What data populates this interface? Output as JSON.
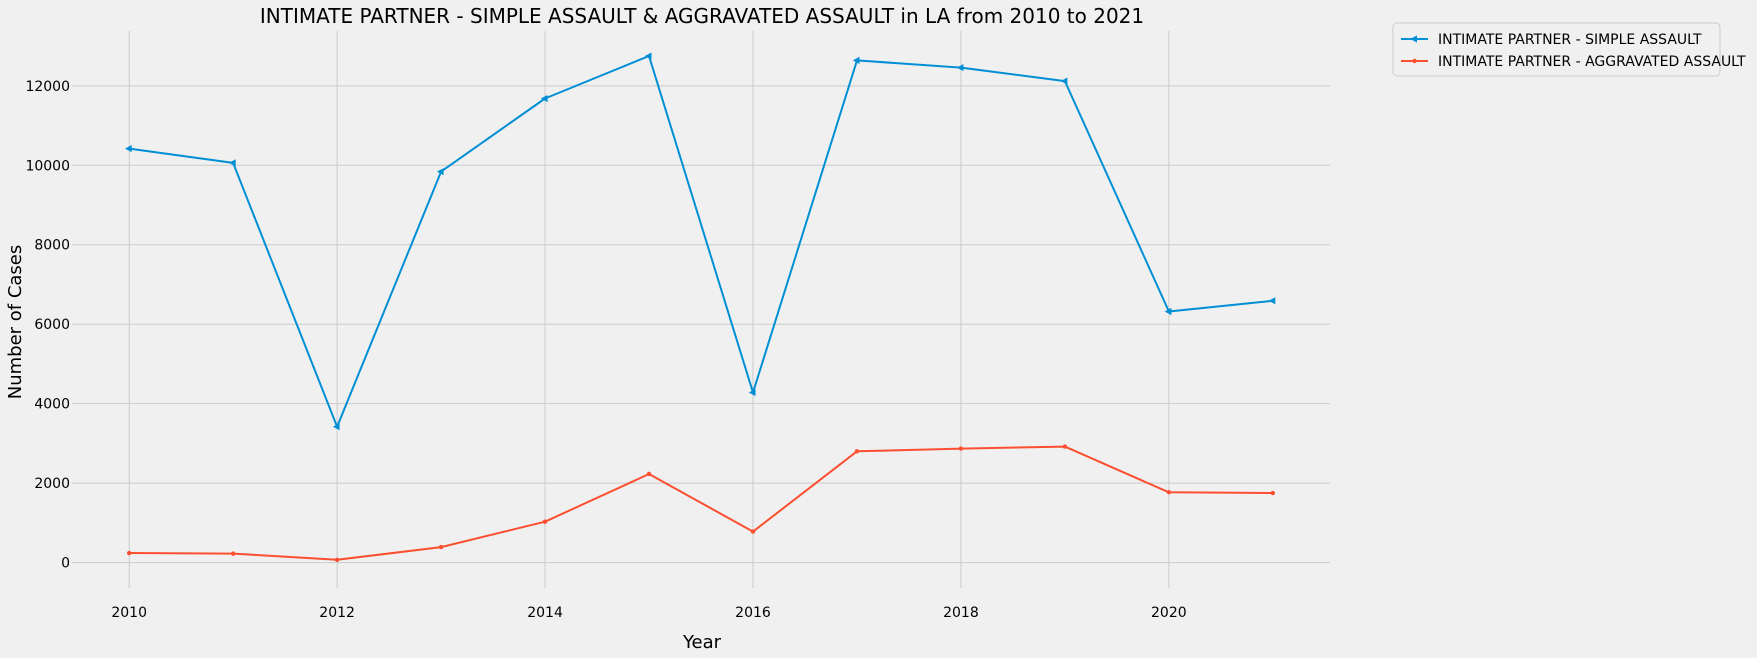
{
  "chart_data": {
    "type": "line",
    "title": "INTIMATE PARTNER - SIMPLE ASSAULT & AGGRAVATED ASSAULT in LA from 2010 to 2021",
    "xlabel": "Year",
    "ylabel": "Number of Cases",
    "x": [
      2010,
      2011,
      2012,
      2013,
      2014,
      2015,
      2016,
      2017,
      2018,
      2019,
      2020,
      2021
    ],
    "xlim": [
      2009.45,
      2021.55
    ],
    "ylim": [
      -640,
      13380
    ],
    "xticks": [
      2010,
      2012,
      2014,
      2016,
      2018,
      2020
    ],
    "yticks": [
      0,
      2000,
      4000,
      6000,
      8000,
      10000,
      12000
    ],
    "grid": true,
    "legend_position": "outside upper-right",
    "series": [
      {
        "name": "INTIMATE PARTNER - SIMPLE ASSAULT",
        "color": "#008fd5",
        "marker": "triangle-left",
        "values": [
          10420,
          10060,
          3420,
          9840,
          11680,
          12750,
          4280,
          12640,
          12460,
          12120,
          6320,
          6590
        ]
      },
      {
        "name": "INTIMATE PARTNER - AGGRAVATED ASSAULT",
        "color": "#fc4f30",
        "marker": "point",
        "values": [
          240,
          225,
          70,
          390,
          1030,
          2230,
          780,
          2800,
          2870,
          2920,
          1770,
          1750
        ]
      }
    ]
  }
}
